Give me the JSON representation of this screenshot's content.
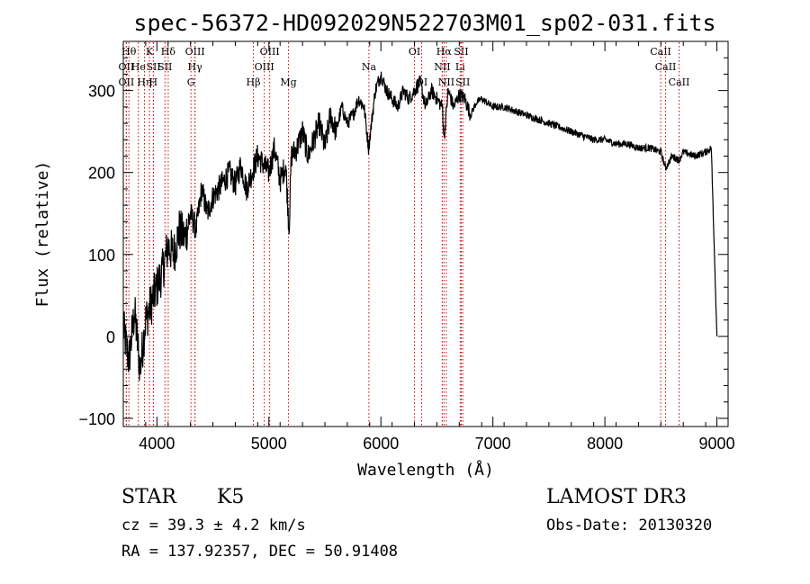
{
  "chart_data": {
    "type": "line",
    "title": "spec-56372-HD092029N522703M01_sp02-031.fits",
    "xlabel": "Wavelength (Å)",
    "ylabel": "Flux (relative)",
    "xlim": [
      3700,
      9100
    ],
    "ylim": [
      -110,
      360
    ],
    "xticks": [
      4000,
      5000,
      6000,
      7000,
      8000,
      9000
    ],
    "yticks": [
      -100,
      0,
      100,
      200,
      300
    ],
    "xtick_labels": [
      "4000",
      "5000",
      "6000",
      "7000",
      "8000",
      "9000"
    ],
    "ytick_labels": [
      "−100",
      "0",
      "100",
      "200",
      "300"
    ],
    "series": [
      {
        "name": "flux",
        "x": [
          3700,
          3750,
          3800,
          3850,
          3900,
          3950,
          4000,
          4050,
          4100,
          4150,
          4200,
          4250,
          4300,
          4350,
          4400,
          4450,
          4500,
          4550,
          4600,
          4650,
          4700,
          4750,
          4800,
          4850,
          4900,
          4950,
          5000,
          5050,
          5100,
          5150,
          5180,
          5200,
          5250,
          5300,
          5350,
          5400,
          5450,
          5500,
          5550,
          5600,
          5650,
          5700,
          5750,
          5800,
          5850,
          5890,
          5950,
          6000,
          6050,
          6100,
          6150,
          6200,
          6250,
          6300,
          6350,
          6400,
          6450,
          6500,
          6550,
          6563,
          6600,
          6650,
          6700,
          6750,
          6800,
          6850,
          6900,
          7000,
          7100,
          7200,
          7300,
          7400,
          7500,
          7600,
          7700,
          7800,
          7900,
          8000,
          8100,
          8200,
          8300,
          8400,
          8500,
          8542,
          8600,
          8662,
          8700,
          8800,
          8900,
          8950,
          9000
        ],
        "y": [
          10,
          -30,
          30,
          -40,
          20,
          40,
          60,
          80,
          110,
          100,
          130,
          120,
          150,
          130,
          180,
          150,
          170,
          180,
          190,
          200,
          185,
          210,
          180,
          200,
          220,
          210,
          200,
          230,
          190,
          210,
          130,
          220,
          230,
          250,
          220,
          240,
          260,
          230,
          270,
          250,
          280,
          260,
          270,
          290,
          280,
          230,
          300,
          320,
          300,
          290,
          280,
          300,
          290,
          300,
          310,
          280,
          300,
          290,
          280,
          240,
          300,
          280,
          295,
          290,
          270,
          285,
          290,
          280,
          280,
          275,
          270,
          265,
          260,
          255,
          250,
          245,
          240,
          240,
          235,
          235,
          230,
          230,
          225,
          205,
          220,
          215,
          225,
          220,
          225,
          230,
          0
        ]
      }
    ],
    "line_ids": [
      {
        "x": 3750,
        "label": "Hθ",
        "row": 0
      },
      {
        "x": 3727,
        "label": "OII",
        "row": 1
      },
      {
        "x": 3727,
        "label": "OII",
        "row": 2
      },
      {
        "x": 3835,
        "label": "He",
        "row": 1
      },
      {
        "x": 3889,
        "label": "Hη",
        "row": 2
      },
      {
        "x": 3934,
        "label": "K",
        "row": 0
      },
      {
        "x": 3970,
        "label": "SII",
        "row": 1
      },
      {
        "x": 3968,
        "label": "H",
        "row": 2
      },
      {
        "x": 4101,
        "label": "Hδ",
        "row": 0
      },
      {
        "x": 4072,
        "label": "SII",
        "row": 1
      },
      {
        "x": 4340,
        "label": "OIII",
        "row": 0
      },
      {
        "x": 4340,
        "label": "Hγ",
        "row": 1
      },
      {
        "x": 4304,
        "label": "G",
        "row": 2
      },
      {
        "x": 4861,
        "label": "Hβ",
        "row": 2
      },
      {
        "x": 5007,
        "label": "OIII",
        "row": 0
      },
      {
        "x": 4959,
        "label": "OIII",
        "row": 1
      },
      {
        "x": 5175,
        "label": "Mg",
        "row": 2
      },
      {
        "x": 5893,
        "label": "Na",
        "row": 1
      },
      {
        "x": 6300,
        "label": "OI",
        "row": 0
      },
      {
        "x": 6364,
        "label": "OI",
        "row": 2
      },
      {
        "x": 6563,
        "label": "Hα",
        "row": 0
      },
      {
        "x": 6548,
        "label": "NII",
        "row": 1
      },
      {
        "x": 6584,
        "label": "NII",
        "row": 2
      },
      {
        "x": 6717,
        "label": "SII",
        "row": 0
      },
      {
        "x": 6708,
        "label": "Li",
        "row": 1
      },
      {
        "x": 6731,
        "label": "SII",
        "row": 2
      },
      {
        "x": 8498,
        "label": "CaII",
        "row": 0
      },
      {
        "x": 8542,
        "label": "CaII",
        "row": 1
      },
      {
        "x": 8662,
        "label": "CaII",
        "row": 2
      }
    ]
  },
  "info": {
    "obj_type": "STAR",
    "subclass": "K5",
    "survey": "LAMOST DR3",
    "cz": "cz = 39.3 ± 4.2 km/s",
    "obs_date": "Obs-Date: 20130320",
    "coords": "RA = 137.92357, DEC =  50.91408"
  }
}
